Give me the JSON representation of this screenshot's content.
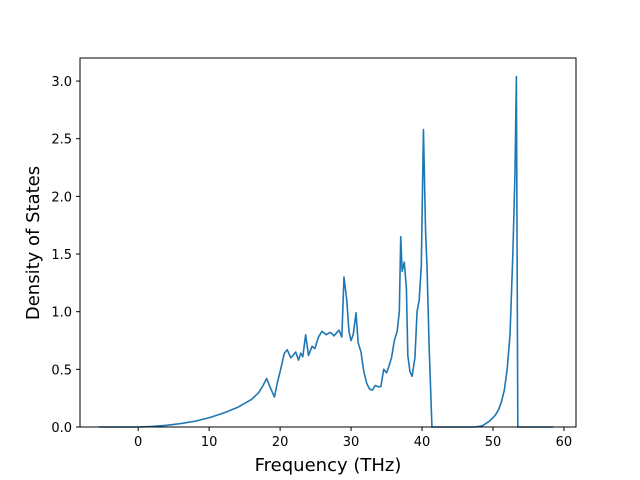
{
  "chart_data": {
    "type": "line",
    "title": "",
    "xlabel": "Frequency (THz)",
    "ylabel": "Density of States",
    "xlim": [
      -8.2,
      61.7
    ],
    "ylim": [
      0,
      3.2
    ],
    "xticks": [
      0,
      10,
      20,
      30,
      40,
      50,
      60
    ],
    "yticks": [
      0.0,
      0.5,
      1.0,
      1.5,
      2.0,
      2.5,
      3.0
    ],
    "xtick_labels": [
      "0",
      "10",
      "20",
      "30",
      "40",
      "50",
      "60"
    ],
    "ytick_labels": [
      "0.0",
      "0.5",
      "1.0",
      "1.5",
      "2.0",
      "2.5",
      "3.0"
    ],
    "grid": false,
    "color": "#1f77b4",
    "series": [
      {
        "x": [
          -5.5,
          -3,
          0,
          2,
          4,
          6,
          8,
          10,
          12,
          14,
          16,
          17,
          17.6,
          18.1,
          18.7,
          19.2,
          19.6,
          20.0,
          20.6,
          21.0,
          21.5,
          21.8,
          22.2,
          22.6,
          22.9,
          23.2,
          23.6,
          24.0,
          24.5,
          24.9,
          25.4,
          25.9,
          26.5,
          27.0,
          27.3,
          27.6,
          28.0,
          28.3,
          28.7,
          29.0,
          29.4,
          29.7,
          30.0,
          30.3,
          30.7,
          31.0,
          31.4,
          31.8,
          32.2,
          32.6,
          33.0,
          33.4,
          33.8,
          34.2,
          34.6,
          35.0,
          35.3,
          35.7,
          36.1,
          36.5,
          36.8,
          37.0,
          37.2,
          37.5,
          37.8,
          38.0,
          38.3,
          38.6,
          39.0,
          39.3,
          39.6,
          39.9,
          40.2,
          40.5,
          40.7,
          41.0,
          41.4,
          41.8,
          42.1,
          42.5,
          45,
          47.5,
          48.5,
          49.5,
          50.3,
          50.8,
          51.2,
          51.6,
          52.0,
          52.4,
          52.8,
          53.1,
          53.3,
          53.5,
          55,
          58.5
        ],
        "y": [
          0,
          0,
          0,
          0.005,
          0.015,
          0.03,
          0.05,
          0.08,
          0.12,
          0.17,
          0.24,
          0.3,
          0.36,
          0.42,
          0.33,
          0.26,
          0.38,
          0.48,
          0.64,
          0.67,
          0.6,
          0.62,
          0.65,
          0.58,
          0.64,
          0.61,
          0.8,
          0.62,
          0.7,
          0.68,
          0.78,
          0.83,
          0.8,
          0.82,
          0.81,
          0.79,
          0.82,
          0.84,
          0.78,
          1.3,
          1.1,
          0.83,
          0.75,
          0.8,
          0.99,
          0.73,
          0.65,
          0.48,
          0.38,
          0.33,
          0.32,
          0.36,
          0.35,
          0.35,
          0.5,
          0.47,
          0.52,
          0.6,
          0.75,
          0.83,
          1.0,
          1.65,
          1.35,
          1.43,
          1.2,
          0.62,
          0.48,
          0.44,
          0.6,
          1.0,
          1.1,
          1.4,
          2.58,
          1.7,
          1.4,
          0.7,
          0.0,
          0.0,
          0.0,
          0.0,
          0.0,
          0.0,
          0.01,
          0.05,
          0.1,
          0.15,
          0.22,
          0.32,
          0.5,
          0.8,
          1.5,
          2.2,
          3.04,
          0.0,
          0.0,
          0.0
        ]
      }
    ]
  }
}
